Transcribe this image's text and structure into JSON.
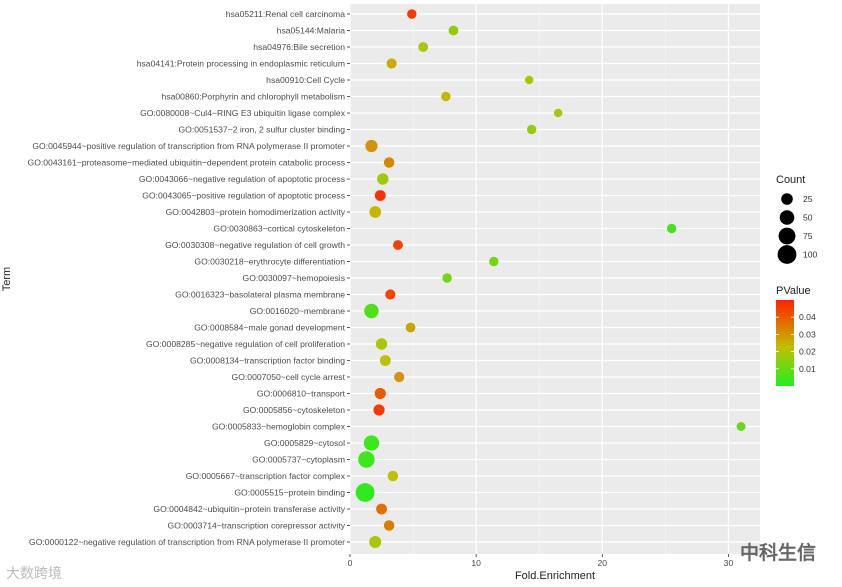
{
  "chart_data": {
    "type": "scatter",
    "xlabel": "Fold.Enrichment",
    "ylabel": "Term",
    "xlim": [
      0,
      32.5
    ],
    "x_ticks": [
      0,
      10,
      20,
      30
    ],
    "legend_count": {
      "title": "Count",
      "values": [
        25,
        50,
        75,
        100
      ]
    },
    "legend_pvalue": {
      "title": "PValue",
      "ticks": [
        0.01,
        0.02,
        0.03,
        0.04
      ],
      "range": [
        0.0,
        0.05
      ],
      "low_color": "#22ee22",
      "high_color": "#ff2200"
    },
    "terms": [
      "hsa05211:Renal cell carcinoma",
      "hsa05144:Malaria",
      "hsa04976:Bile secretion",
      "hsa04141:Protein processing in endoplasmic reticulum",
      "hsa00910:Cell Cycle",
      "hsa00860:Porphyrin and chlorophyll metabolism",
      "GO:0080008~Cul4−RING E3 ubiquitin ligase complex",
      "GO:0051537~2 iron, 2 sulfur cluster binding",
      "GO:0045944~positive regulation of transcription from RNA polymerase II promoter",
      "GO:0043161~proteasome−mediated ubiquitin−dependent protein catabolic process",
      "GO:0043066~negative regulation of apoptotic process",
      "GO:0043065~positive regulation of apoptotic process",
      "GO:0042803~protein homodimerization activity",
      "GO:0030863~cortical cytoskeleton",
      "GO:0030308~negative regulation of cell growth",
      "GO:0030218~erythrocyte differentiation",
      "GO:0030097~hemopoiesis",
      "GO:0016323~basolateral plasma membrane",
      "GO:0016020~membrane",
      "GO:0008584~male gonad development",
      "GO:0008285~negative regulation of cell proliferation",
      "GO:0008134~transcription factor binding",
      "GO:0007050~cell cycle arrest",
      "GO:0006810~transport",
      "GO:0005856~cytoskeleton",
      "GO:0005833~hemoglobin complex",
      "GO:0005829~cytosol",
      "GO:0005737~cytoplasm",
      "GO:0005667~transcription factor complex",
      "GO:0005515~protein binding",
      "GO:0004842~ubiquitin−protein transferase activity",
      "GO:0003714~transcription corepressor activity",
      "GO:0000122~negative regulation of transcription from RNA polymerase II promoter"
    ],
    "points": [
      {
        "fold": 4.9,
        "count": 12,
        "pvalue": 0.046
      },
      {
        "fold": 8.2,
        "count": 14,
        "pvalue": 0.016
      },
      {
        "fold": 5.8,
        "count": 14,
        "pvalue": 0.02
      },
      {
        "fold": 3.3,
        "count": 16,
        "pvalue": 0.026
      },
      {
        "fold": 14.2,
        "count": 8,
        "pvalue": 0.02
      },
      {
        "fold": 7.6,
        "count": 12,
        "pvalue": 0.024
      },
      {
        "fold": 16.5,
        "count": 8,
        "pvalue": 0.02
      },
      {
        "fold": 14.4,
        "count": 12,
        "pvalue": 0.016
      },
      {
        "fold": 1.7,
        "count": 30,
        "pvalue": 0.03
      },
      {
        "fold": 3.1,
        "count": 18,
        "pvalue": 0.032
      },
      {
        "fold": 2.6,
        "count": 24,
        "pvalue": 0.018
      },
      {
        "fold": 2.4,
        "count": 20,
        "pvalue": 0.047
      },
      {
        "fold": 2.0,
        "count": 26,
        "pvalue": 0.024
      },
      {
        "fold": 25.5,
        "count": 12,
        "pvalue": 0.006
      },
      {
        "fold": 3.8,
        "count": 14,
        "pvalue": 0.044
      },
      {
        "fold": 11.4,
        "count": 12,
        "pvalue": 0.012
      },
      {
        "fold": 7.7,
        "count": 12,
        "pvalue": 0.012
      },
      {
        "fold": 3.2,
        "count": 16,
        "pvalue": 0.044
      },
      {
        "fold": 1.7,
        "count": 48,
        "pvalue": 0.006
      },
      {
        "fold": 4.8,
        "count": 14,
        "pvalue": 0.027
      },
      {
        "fold": 2.5,
        "count": 24,
        "pvalue": 0.02
      },
      {
        "fold": 2.8,
        "count": 20,
        "pvalue": 0.022
      },
      {
        "fold": 3.9,
        "count": 16,
        "pvalue": 0.03
      },
      {
        "fold": 2.4,
        "count": 22,
        "pvalue": 0.04
      },
      {
        "fold": 2.3,
        "count": 22,
        "pvalue": 0.046
      },
      {
        "fold": 31.0,
        "count": 10,
        "pvalue": 0.01
      },
      {
        "fold": 1.7,
        "count": 58,
        "pvalue": 0.004
      },
      {
        "fold": 1.3,
        "count": 70,
        "pvalue": 0.004
      },
      {
        "fold": 3.4,
        "count": 18,
        "pvalue": 0.022
      },
      {
        "fold": 1.2,
        "count": 100,
        "pvalue": 0.002
      },
      {
        "fold": 2.5,
        "count": 20,
        "pvalue": 0.036
      },
      {
        "fold": 3.1,
        "count": 18,
        "pvalue": 0.034
      },
      {
        "fold": 2.0,
        "count": 28,
        "pvalue": 0.02
      }
    ]
  },
  "watermarks": {
    "right_text": "中科生信",
    "left_text": "大数跨境"
  }
}
